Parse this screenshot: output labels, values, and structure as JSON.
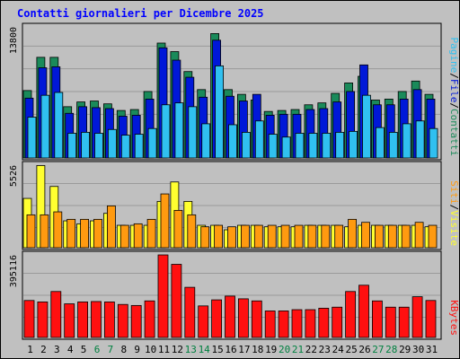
{
  "title": "Contatti giornalieri per Dicembre 2025",
  "colors": {
    "background": "#c0c0c0",
    "panel": "#c0c0c0",
    "contatti": "#1a8a5a",
    "file": "#0018d8",
    "pagine": "#30c0f0",
    "visite": "#ffff30",
    "siti": "#ff9a10",
    "kbytes": "#ff1010",
    "weekday_label": "#000000",
    "weekend_label": "#008040",
    "title": "#0000ff"
  },
  "chart_data": [
    {
      "type": "bar",
      "name": "hits",
      "ymax_label": "13800",
      "ymax": 13800,
      "legend": [
        {
          "label": "Pagine",
          "color": "#30c0f0"
        },
        {
          "label": "File",
          "color": "#0018d8"
        },
        {
          "label": "Contatti",
          "color": "#1a8a5a"
        }
      ],
      "separators": [
        "/",
        "/"
      ],
      "series": [
        {
          "name": "Contatti",
          "values": [
            7100,
            10600,
            10600,
            5400,
            5900,
            6000,
            5700,
            5000,
            5100,
            7000,
            12100,
            11200,
            9100,
            7200,
            13100,
            7200,
            6700,
            6100,
            4900,
            5000,
            5100,
            5600,
            5800,
            6800,
            7900,
            8600,
            6100,
            6200,
            7000,
            8100,
            6700
          ]
        },
        {
          "name": "File",
          "values": [
            6300,
            9500,
            9600,
            4700,
            5400,
            5300,
            5200,
            4400,
            4500,
            6200,
            11600,
            10300,
            8500,
            6400,
            12400,
            6500,
            6000,
            6700,
            4500,
            4600,
            4600,
            5100,
            5200,
            5900,
            7000,
            9800,
            5600,
            5600,
            6200,
            7200,
            6200
          ]
        },
        {
          "name": "Pagine",
          "values": [
            4300,
            6600,
            6900,
            2600,
            2700,
            2600,
            3000,
            2400,
            2500,
            3100,
            5600,
            5800,
            5400,
            3600,
            9700,
            3500,
            2700,
            3900,
            2500,
            2200,
            2600,
            2600,
            2600,
            2700,
            2800,
            6600,
            3200,
            2700,
            3600,
            3900,
            3100
          ]
        }
      ]
    },
    {
      "type": "bar",
      "name": "visits",
      "ymax_label": "5526",
      "ymax": 5526,
      "legend": [
        {
          "label": "Siti",
          "color": "#ff9a10"
        },
        {
          "label": "Visite",
          "color": "#ffff30"
        }
      ],
      "separators": [
        "/"
      ],
      "series": [
        {
          "name": "Visite",
          "values": [
            3300,
            5500,
            4100,
            1800,
            1600,
            1800,
            2300,
            1500,
            1500,
            1500,
            3100,
            4400,
            3100,
            1500,
            1500,
            1200,
            1500,
            1500,
            1400,
            1400,
            1400,
            1500,
            1500,
            1500,
            1400,
            1500,
            1500,
            1500,
            1500,
            1500,
            1400
          ]
        },
        {
          "name": "Siti",
          "values": [
            2200,
            2200,
            2400,
            1900,
            1900,
            1900,
            2800,
            1500,
            1600,
            1900,
            3600,
            2500,
            2200,
            1400,
            1500,
            1400,
            1500,
            1500,
            1500,
            1500,
            1500,
            1500,
            1500,
            1500,
            1900,
            1700,
            1500,
            1500,
            1500,
            1700,
            1500
          ]
        }
      ]
    },
    {
      "type": "bar",
      "name": "kbytes",
      "ymax_label": "395116",
      "ymax": 395116,
      "legend": [
        {
          "label": "KBytes",
          "color": "#ff1010"
        }
      ],
      "separators": [],
      "series": [
        {
          "name": "KBytes",
          "values": [
            177000,
            170000,
            220000,
            161000,
            170000,
            172000,
            170000,
            158000,
            153000,
            175000,
            395000,
            350000,
            240000,
            151000,
            180000,
            198000,
            185000,
            175000,
            127000,
            127000,
            133000,
            133000,
            140000,
            145000,
            220000,
            250000,
            175000,
            145000,
            145000,
            195000,
            177000
          ]
        }
      ]
    }
  ],
  "x_axis": {
    "labels": [
      "1",
      "2",
      "3",
      "4",
      "5",
      "6",
      "7",
      "8",
      "9",
      "10",
      "11",
      "12",
      "13",
      "14",
      "15",
      "16",
      "17",
      "18",
      "19",
      "20",
      "21",
      "22",
      "23",
      "24",
      "25",
      "26",
      "27",
      "28",
      "29",
      "30",
      "31"
    ],
    "weekend": [
      false,
      false,
      false,
      false,
      false,
      true,
      true,
      false,
      false,
      false,
      false,
      false,
      true,
      true,
      false,
      false,
      false,
      false,
      false,
      true,
      true,
      false,
      false,
      false,
      false,
      false,
      true,
      true,
      false,
      false,
      false
    ]
  }
}
